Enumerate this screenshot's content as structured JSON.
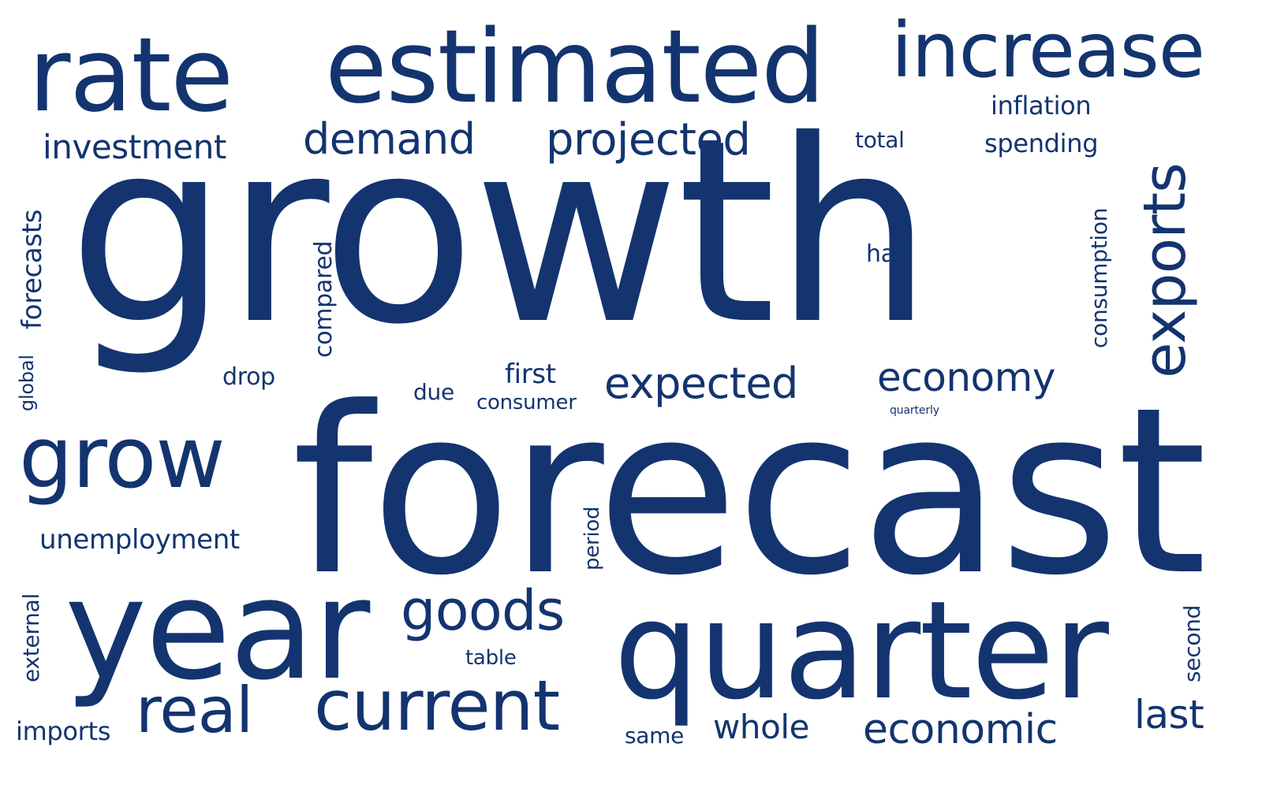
{
  "color": "#13346f",
  "background": "#ffffff",
  "words": {
    "growth": "growth",
    "forecast": "forecast",
    "year": "year",
    "quarter": "quarter",
    "estimated": "estimated",
    "rate": "rate",
    "increase": "increase",
    "grow": "grow",
    "current": "current",
    "real": "real",
    "exports": "exports",
    "goods": "goods",
    "projected": "projected",
    "demand": "demand",
    "expected": "expected",
    "economy": "economy",
    "economic": "economic",
    "investment": "investment",
    "whole": "whole",
    "last": "last",
    "unemployment": "unemployment",
    "inflation": "inflation",
    "spending": "spending",
    "consumption": "consumption",
    "forecasts": "forecasts",
    "compared": "compared",
    "first": "first",
    "consumer": "consumer",
    "total": "total",
    "half": "half",
    "drop": "drop",
    "due": "due",
    "imports": "imports",
    "table": "table",
    "same": "same",
    "period": "period",
    "external": "external",
    "second": "second",
    "global": "global",
    "quarterly": "quarterly"
  }
}
